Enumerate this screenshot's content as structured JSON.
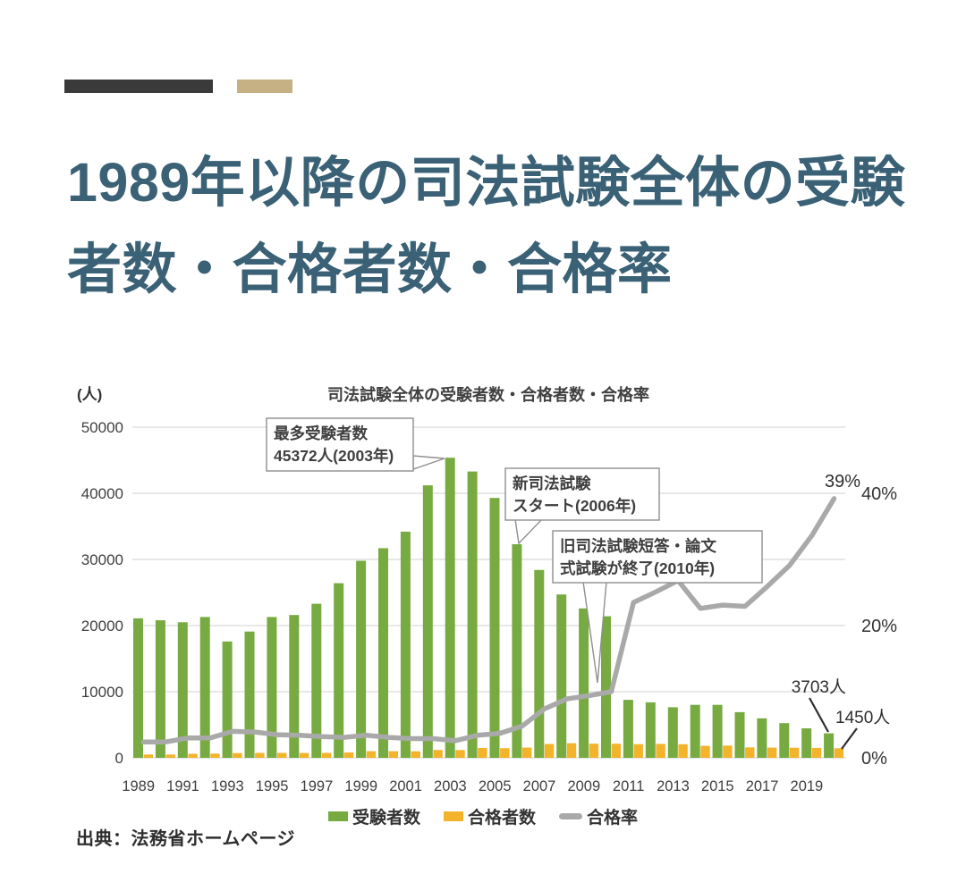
{
  "page": {
    "title_line1": "1989年以降の司法試験全体の受験",
    "title_line2": "者数・合格者数・合格率",
    "title_color": "#3a6175",
    "deco_colors": {
      "dark": "#3a3a3a",
      "tan": "#c5b183"
    },
    "source": "出典：法務省ホームページ"
  },
  "chart_data": {
    "type": "bar",
    "title": "司法試験全体の受験者数・合格者数・合格率",
    "x": [
      1989,
      1990,
      1991,
      1992,
      1993,
      1994,
      1995,
      1996,
      1997,
      1998,
      1999,
      2000,
      2001,
      2002,
      2003,
      2004,
      2005,
      2006,
      2007,
      2008,
      2009,
      2010,
      2011,
      2012,
      2013,
      2014,
      2015,
      2016,
      2017,
      2018,
      2019,
      2020
    ],
    "x_tick_labels": [
      "1989",
      "1991",
      "1993",
      "1995",
      "1997",
      "1999",
      "2001",
      "2003",
      "2005",
      "2007",
      "2009",
      "2011",
      "2013",
      "2015",
      "2017",
      "2019"
    ],
    "series": [
      {
        "name": "受験者数",
        "kind": "bar",
        "color": "#77aa41",
        "values": [
          21100,
          20800,
          20500,
          21300,
          17600,
          19100,
          21300,
          21600,
          23300,
          26400,
          29800,
          31700,
          34200,
          41200,
          45372,
          43300,
          39300,
          32300,
          28400,
          24700,
          22600,
          21400,
          8765,
          8387,
          7653,
          8015,
          8016,
          6899,
          5967,
          5238,
          4466,
          3703
        ]
      },
      {
        "name": "合格者数",
        "kind": "bar",
        "color": "#f3b32b",
        "values": [
          506,
          499,
          605,
          630,
          712,
          740,
          738,
          734,
          746,
          812,
          1000,
          994,
          990,
          1183,
          1170,
          1483,
          1464,
          1558,
          2099,
          2209,
          2135,
          2133,
          2063,
          2102,
          2049,
          1810,
          1850,
          1583,
          1543,
          1525,
          1502,
          1450
        ]
      },
      {
        "name": "合格率",
        "kind": "line",
        "axis": "percent",
        "color": "#a9a9a9",
        "values": [
          2.4,
          2.4,
          3.0,
          3.0,
          4.0,
          3.9,
          3.5,
          3.4,
          3.2,
          3.1,
          3.4,
          3.1,
          2.9,
          2.9,
          2.6,
          3.4,
          3.7,
          4.8,
          7.4,
          8.9,
          9.4,
          10.0,
          23.5,
          25.1,
          26.8,
          22.6,
          23.1,
          22.9,
          25.9,
          29.1,
          33.6,
          39.2
        ]
      }
    ],
    "left_axis": {
      "label": "(人)",
      "ticks": [
        0,
        10000,
        20000,
        30000,
        40000,
        50000
      ],
      "max": 50000
    },
    "right_axis": {
      "max_percent": 50,
      "ticks": [
        {
          "label": "0%",
          "percent": 0
        },
        {
          "label": "20%",
          "percent": 20
        },
        {
          "label": "40%",
          "percent": 40
        }
      ]
    },
    "grid": true,
    "legend_position": "bottom",
    "legend": [
      {
        "label": "受験者数",
        "swatch": "green"
      },
      {
        "label": "合格者数",
        "swatch": "yellow"
      },
      {
        "label": "合格率",
        "swatch": "gray-line"
      }
    ],
    "annotations": [
      {
        "id": "max-examinees",
        "lines": [
          "最多受験者数",
          "45372人(2003年)"
        ]
      },
      {
        "id": "new-exam-start",
        "lines": [
          "新司法試験",
          "スタート(2006年)"
        ]
      },
      {
        "id": "old-exam-end",
        "lines": [
          "旧司法試験短答・論文",
          "式試験が終了(2010年)"
        ]
      },
      {
        "id": "rate-end",
        "text": "39%"
      },
      {
        "id": "last-examinees",
        "text": "3703人"
      },
      {
        "id": "last-passers",
        "text": "1450人"
      }
    ]
  }
}
